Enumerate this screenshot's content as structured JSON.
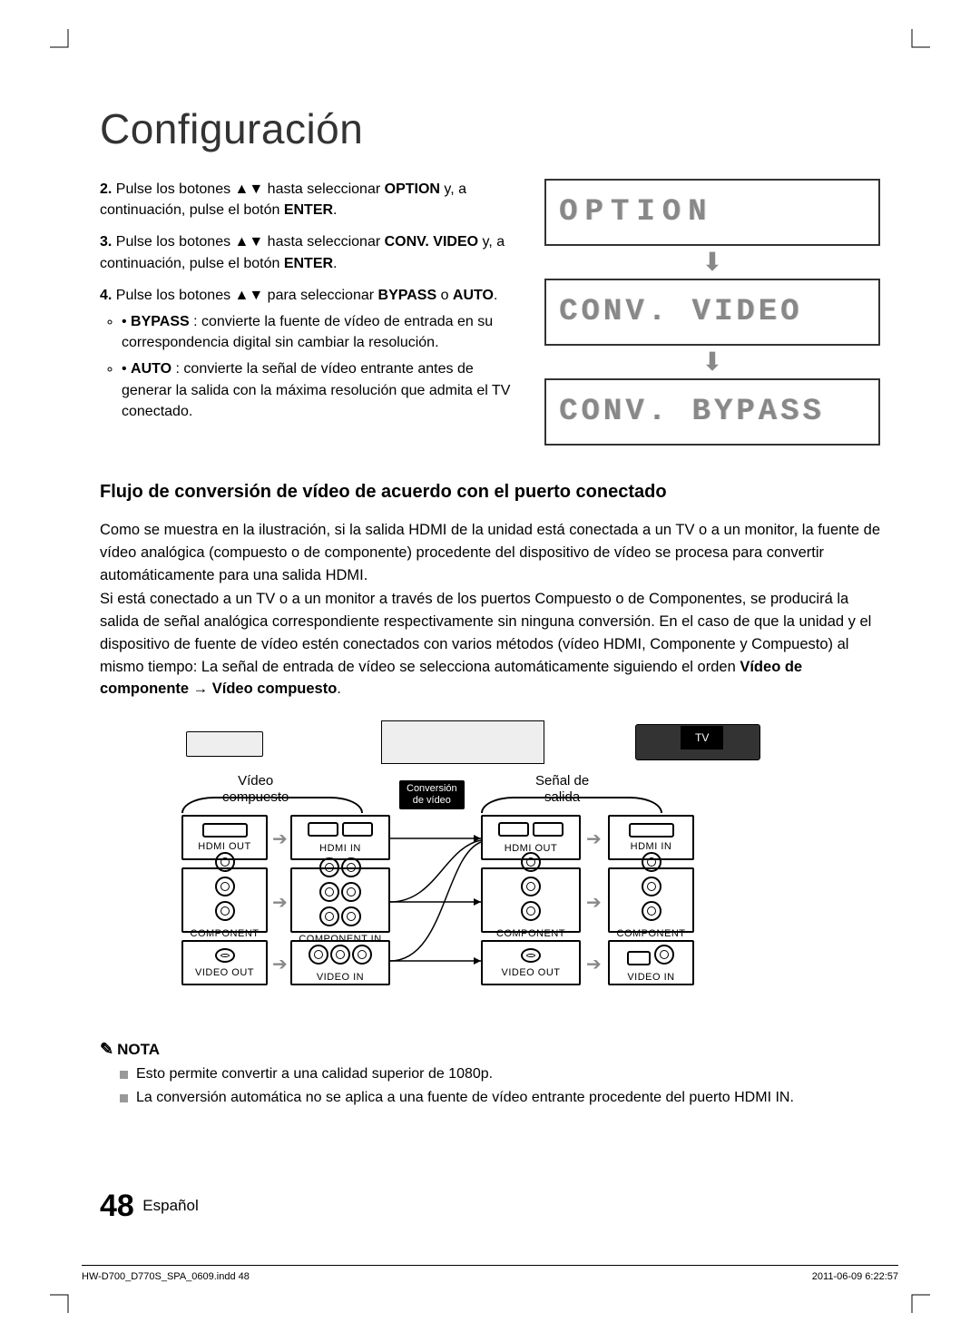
{
  "title": "Configuración",
  "steps": {
    "s2": {
      "num": "2.",
      "text_a": "Pulse los botones ▲▼ hasta seleccionar ",
      "bold1": "OPTION",
      "text_b": " y, a continuación, pulse el botón ",
      "bold2": "ENTER",
      "text_c": "."
    },
    "s3": {
      "num": "3.",
      "text_a": "Pulse los botones ▲▼ hasta seleccionar ",
      "bold1": "CONV. VIDEO",
      "text_b": " y, a continuación, pulse el botón ",
      "bold2": "ENTER",
      "text_c": "."
    },
    "s4": {
      "num": "4.",
      "text_a": "Pulse los botones ▲▼ para seleccionar ",
      "bold1": "BYPASS",
      "text_b": " o ",
      "bold2": "AUTO",
      "text_c": "."
    },
    "bypass": {
      "label": "BYPASS",
      "text": " : convierte la fuente de vídeo de entrada en su correspondencia digital sin cambiar la resolución."
    },
    "auto": {
      "label": "AUTO",
      "text": " : convierte la señal de vídeo entrante antes de generar la salida con la máxima resolución que admita el TV conectado."
    }
  },
  "lcd": {
    "l1": "OPTION",
    "l2": "CONV. VIDEO",
    "l3": "CONV. BYPASS"
  },
  "section2_heading": "Flujo de conversión de vídeo de acuerdo con el puerto conectado",
  "para1": "Como se muestra en la ilustración, si la salida HDMI de la unidad está conectada a un TV o a un monitor, la fuente de vídeo analógica (compuesto o de componente) procedente del dispositivo de vídeo se procesa para convertir automáticamente para una salida HDMI.",
  "para2_a": "Si está conectado a un TV o a un monitor a través de los puertos Compuesto o de Componentes, se producirá la salida de señal analógica correspondiente respectivamente sin ninguna conversión. En el caso de que la unidad y el dispositivo de fuente de vídeo estén conectados con varios métodos (vídeo HDMI, Componente y Compuesto) al mismo tiempo: La señal de entrada de vídeo se selecciona automáticamente siguiendo el orden ",
  "para2_bold": "Vídeo de componente → Vídeo compuesto",
  "para2_b": ".",
  "diagram": {
    "group_left": "Vídeo\ncompuesto",
    "center_badge": "Conversión\nde vídeo",
    "group_right": "Señal de\nsalida",
    "tv_badge": "TV",
    "labels": {
      "hdmi_out": "HDMI OUT",
      "hdmi_in": "HDMI IN",
      "component_out": "COMPONENT OUT",
      "component_in": "COMPONENT IN",
      "video_out": "VIDEO OUT",
      "video_in": "VIDEO IN"
    }
  },
  "note": {
    "heading": "NOTA",
    "n1": "Esto permite convertir a una calidad superior de 1080p.",
    "n2": "La conversión automática no se aplica a una fuente de vídeo entrante procedente del puerto HDMI IN."
  },
  "footer": {
    "page": "48",
    "lang": "Español"
  },
  "print": {
    "left": "HW-D700_D770S_SPA_0609.indd   48",
    "right": "2011-06-09     6:22:57"
  },
  "colors": {
    "lcd_text": "#888888",
    "arrow": "#9aa7b0"
  }
}
